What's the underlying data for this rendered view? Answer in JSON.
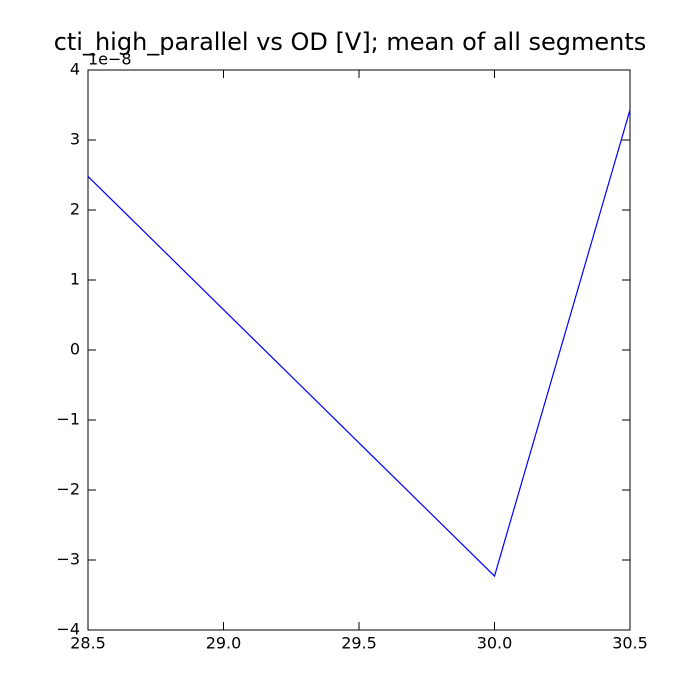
{
  "chart_data": {
    "type": "line",
    "title": "cti_high_parallel vs OD [V]; mean of all segments",
    "y_offset_label": "1e−8",
    "x": [
      28.5,
      30.0,
      30.5
    ],
    "series": [
      {
        "color": "#0000ff",
        "values": [
          2.48,
          -3.23,
          3.43
        ]
      }
    ],
    "xlim": [
      28.5,
      30.5
    ],
    "xticks": [
      28.5,
      {
        "value": 29.0,
        "label": "29.0"
      },
      29.5,
      {
        "value": 30.0,
        "label": "30.0"
      },
      30.5
    ],
    "ylim": [
      -4,
      4
    ],
    "yticks": [
      {
        "value": -4,
        "label": "−4"
      },
      {
        "value": -3,
        "label": "−3"
      },
      {
        "value": -2,
        "label": "−2"
      },
      {
        "value": -1,
        "label": "−1"
      },
      0,
      1,
      2,
      3,
      4
    ],
    "grid": false
  }
}
